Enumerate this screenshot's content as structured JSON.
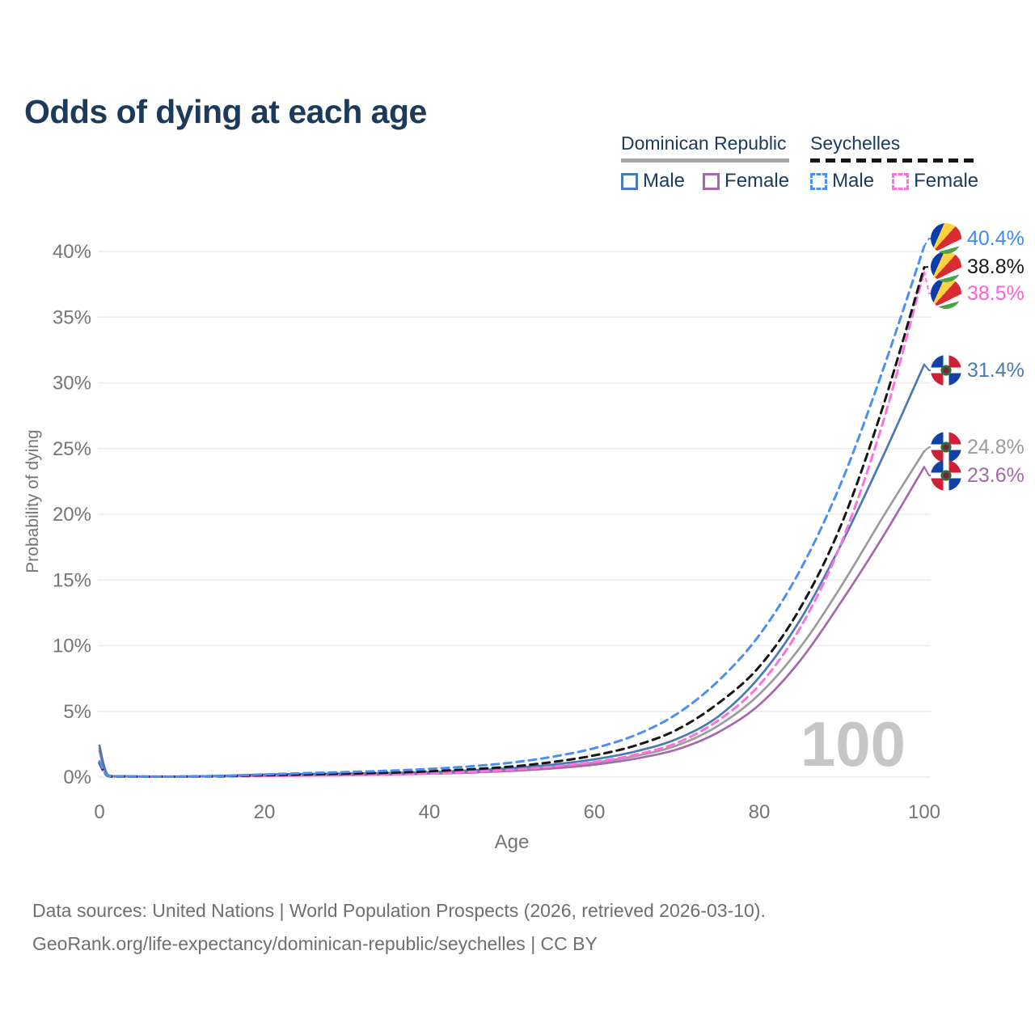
{
  "title": "Odds of dying at each age",
  "watermark": "100",
  "legend": {
    "groups": [
      {
        "label": "Dominican Republic",
        "line_style": "solid",
        "underline_color": "#a8a8a8",
        "items": [
          {
            "label": "Male",
            "color": "#4a7ab5",
            "dashed": false
          },
          {
            "label": "Female",
            "color": "#a767ad",
            "dashed": false
          }
        ]
      },
      {
        "label": "Seychelles",
        "line_style": "dashed",
        "underline_color": "#161616",
        "items": [
          {
            "label": "Male",
            "color": "#4b8ff2",
            "dashed": true
          },
          {
            "label": "Female",
            "color": "#ff70dd",
            "dashed": true
          }
        ]
      }
    ]
  },
  "chart_data": {
    "type": "line",
    "title": "Odds of dying at each age",
    "xlabel": "Age",
    "ylabel": "Probability of dying",
    "unit": "%",
    "xlim": [
      0,
      100
    ],
    "ylim": [
      0,
      40
    ],
    "x_ticks": [
      0,
      20,
      40,
      60,
      80,
      100
    ],
    "y_ticks": [
      "0%",
      "5%",
      "10%",
      "15%",
      "20%",
      "25%",
      "30%",
      "35%",
      "40%"
    ],
    "grid": true,
    "legend_position": "top-right",
    "hover_age_indicator": "100",
    "series": [
      {
        "id": "dr_all",
        "name": "Dominican Republic — All",
        "country": "Dominican Republic",
        "sex": "all",
        "color": "#9c9c9c",
        "dashed": false,
        "end_label": "24.8%",
        "flag": "do",
        "points": [
          [
            0,
            2.2
          ],
          [
            1,
            0.14
          ],
          [
            3,
            0.06
          ],
          [
            5,
            0.045
          ],
          [
            10,
            0.04
          ],
          [
            15,
            0.08
          ],
          [
            20,
            0.14
          ],
          [
            25,
            0.18
          ],
          [
            30,
            0.2
          ],
          [
            35,
            0.24
          ],
          [
            40,
            0.3
          ],
          [
            45,
            0.4
          ],
          [
            50,
            0.55
          ],
          [
            55,
            0.78
          ],
          [
            60,
            1.1
          ],
          [
            65,
            1.6
          ],
          [
            70,
            2.4
          ],
          [
            75,
            3.9
          ],
          [
            80,
            6.3
          ],
          [
            85,
            9.9
          ],
          [
            90,
            14.6
          ],
          [
            95,
            19.8
          ],
          [
            100,
            24.8
          ]
        ]
      },
      {
        "id": "dr_female",
        "name": "Dominican Republic — Female",
        "country": "Dominican Republic",
        "sex": "female",
        "color": "#a767ad",
        "dashed": false,
        "end_label": "23.6%",
        "flag": "do",
        "points": [
          [
            0,
            2.0
          ],
          [
            1,
            0.12
          ],
          [
            3,
            0.05
          ],
          [
            5,
            0.04
          ],
          [
            10,
            0.035
          ],
          [
            15,
            0.06
          ],
          [
            20,
            0.09
          ],
          [
            25,
            0.12
          ],
          [
            30,
            0.15
          ],
          [
            35,
            0.19
          ],
          [
            40,
            0.25
          ],
          [
            45,
            0.34
          ],
          [
            50,
            0.47
          ],
          [
            55,
            0.66
          ],
          [
            60,
            0.95
          ],
          [
            65,
            1.4
          ],
          [
            70,
            2.1
          ],
          [
            75,
            3.4
          ],
          [
            80,
            5.5
          ],
          [
            85,
            8.9
          ],
          [
            90,
            13.4
          ],
          [
            95,
            18.3
          ],
          [
            100,
            23.6
          ]
        ]
      },
      {
        "id": "dr_male",
        "name": "Dominican Republic — Male",
        "country": "Dominican Republic",
        "sex": "male",
        "color": "#4a7ab5",
        "dashed": false,
        "end_label": "31.4%",
        "flag": "do",
        "points": [
          [
            0,
            2.4
          ],
          [
            1,
            0.16
          ],
          [
            3,
            0.07
          ],
          [
            5,
            0.05
          ],
          [
            10,
            0.05
          ],
          [
            15,
            0.1
          ],
          [
            20,
            0.19
          ],
          [
            25,
            0.24
          ],
          [
            30,
            0.27
          ],
          [
            35,
            0.31
          ],
          [
            40,
            0.38
          ],
          [
            45,
            0.5
          ],
          [
            50,
            0.68
          ],
          [
            55,
            0.95
          ],
          [
            60,
            1.35
          ],
          [
            65,
            1.95
          ],
          [
            70,
            2.9
          ],
          [
            75,
            4.6
          ],
          [
            80,
            7.6
          ],
          [
            85,
            12.0
          ],
          [
            90,
            17.8
          ],
          [
            95,
            24.4
          ],
          [
            100,
            31.4
          ]
        ]
      },
      {
        "id": "sey_female",
        "name": "Seychelles — Female",
        "country": "Seychelles",
        "sex": "female",
        "color": "#ff70dd",
        "dashed": true,
        "end_label": "38.5%",
        "flag": "sc",
        "points": [
          [
            0,
            1.0
          ],
          [
            1,
            0.07
          ],
          [
            3,
            0.04
          ],
          [
            5,
            0.03
          ],
          [
            10,
            0.03
          ],
          [
            15,
            0.05
          ],
          [
            20,
            0.08
          ],
          [
            25,
            0.11
          ],
          [
            30,
            0.15
          ],
          [
            35,
            0.2
          ],
          [
            40,
            0.28
          ],
          [
            45,
            0.4
          ],
          [
            50,
            0.55
          ],
          [
            55,
            0.8
          ],
          [
            60,
            1.15
          ],
          [
            65,
            1.7
          ],
          [
            70,
            2.6
          ],
          [
            75,
            4.3
          ],
          [
            80,
            7.0
          ],
          [
            85,
            11.4
          ],
          [
            90,
            17.9
          ],
          [
            95,
            27.0
          ],
          [
            100,
            38.5
          ]
        ]
      },
      {
        "id": "sey_all",
        "name": "Seychelles — All",
        "country": "Seychelles",
        "sex": "all",
        "color": "#161616",
        "dashed": true,
        "end_label": "38.8%",
        "flag": "sc",
        "points": [
          [
            0,
            1.1
          ],
          [
            1,
            0.08
          ],
          [
            3,
            0.045
          ],
          [
            5,
            0.035
          ],
          [
            10,
            0.035
          ],
          [
            15,
            0.07
          ],
          [
            20,
            0.14
          ],
          [
            25,
            0.2
          ],
          [
            30,
            0.26
          ],
          [
            35,
            0.33
          ],
          [
            40,
            0.44
          ],
          [
            45,
            0.6
          ],
          [
            50,
            0.8
          ],
          [
            55,
            1.15
          ],
          [
            60,
            1.65
          ],
          [
            65,
            2.4
          ],
          [
            70,
            3.6
          ],
          [
            75,
            5.6
          ],
          [
            80,
            8.4
          ],
          [
            85,
            12.9
          ],
          [
            90,
            19.3
          ],
          [
            95,
            28.2
          ],
          [
            100,
            38.8
          ]
        ]
      },
      {
        "id": "sey_male",
        "name": "Seychelles — Male",
        "country": "Seychelles",
        "sex": "male",
        "color": "#4b8ff2",
        "dashed": true,
        "end_label": "40.4%",
        "flag": "sc",
        "points": [
          [
            0,
            1.2
          ],
          [
            1,
            0.09
          ],
          [
            3,
            0.05
          ],
          [
            5,
            0.04
          ],
          [
            10,
            0.04
          ],
          [
            15,
            0.09
          ],
          [
            20,
            0.2
          ],
          [
            25,
            0.3
          ],
          [
            30,
            0.38
          ],
          [
            35,
            0.48
          ],
          [
            40,
            0.62
          ],
          [
            45,
            0.82
          ],
          [
            50,
            1.1
          ],
          [
            55,
            1.55
          ],
          [
            60,
            2.2
          ],
          [
            65,
            3.2
          ],
          [
            70,
            4.8
          ],
          [
            75,
            7.3
          ],
          [
            80,
            10.8
          ],
          [
            85,
            15.8
          ],
          [
            90,
            22.5
          ],
          [
            95,
            31.0
          ],
          [
            100,
            40.4
          ]
        ]
      }
    ],
    "end_label_text_colors": {
      "sey_male": "#3e8af5",
      "sey_all": "#1a1a1a",
      "sey_female": "#ff5fd6",
      "dr_male": "#4a7ab5",
      "dr_all": "#9c9c9c",
      "dr_female": "#a767ad"
    }
  },
  "footer": {
    "line1": "Data sources: United Nations | World Population Prospects (2026, retrieved 2026-03-10).",
    "line2": "GeoRank.org/life-expectancy/dominican-republic/seychelles | CC BY"
  }
}
